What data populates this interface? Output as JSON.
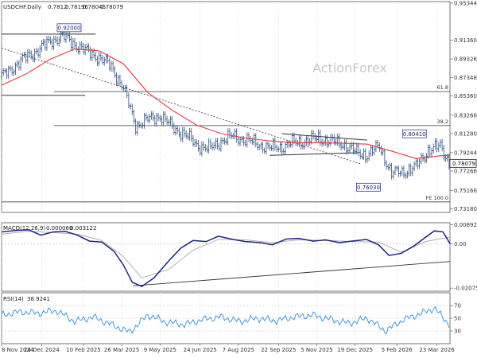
{
  "colors": {
    "bar": "#2f4f7f",
    "sma": "#e8383c",
    "trendline": "#333333",
    "fib_line": "#2a3a4a",
    "macd": "#1a237e",
    "macd_signal": "#b0b0b0",
    "rsi": "#2f8fd8",
    "grid": "#bbbbbb",
    "axis": "#555555",
    "watermark": "#c8c8c8"
  },
  "chart_data": [
    {
      "type": "line",
      "panel": "price",
      "title": "USDCHF.Daily  0.78120 0.78196 0.78046 0.78079",
      "symbol_label": "USDCHF.Daily",
      "ohlc": {
        "open": 0.7812,
        "high": 0.78196,
        "low": 0.78046,
        "close": 0.78079
      },
      "watermark": "ActionForex",
      "x_tick_labels": [
        "8 Nov 2024",
        "24 Dec 2024",
        "10 Feb 2025",
        "26 Mar 2025",
        "9 May 2025",
        "24 Jun 2025",
        "7 Aug 2025",
        "22 Sep 2025",
        "5 Nov 2025",
        "19 Dec 2025",
        "5 Feb 2026",
        "23 Mar 2026"
      ],
      "x_range": [
        "2024-11-08",
        "2026-04-07"
      ],
      "y_ticks": [
        0.9534,
        0.9136,
        0.8932,
        0.8734,
        0.8536,
        0.8326,
        0.8128,
        0.7924,
        0.7726,
        0.7516,
        0.7318
      ],
      "y_tick_labels": [
        "0.95344",
        "0.91360",
        "0.89326",
        "0.87348",
        "0.85360",
        "0.83266",
        "0.81280",
        "0.79244",
        "0.77266",
        "0.75166",
        "0.73180"
      ],
      "ylim": [
        0.728,
        0.955
      ],
      "current_price_label": "0.78079",
      "annotations": [
        {
          "label": "0.92000",
          "date": "2025-01-10",
          "value": 0.92
        },
        {
          "label": "0.80410",
          "date": "2026-03-09",
          "value": 0.8041
        },
        {
          "label": "0.76030",
          "date": "2026-01-28",
          "value": 0.7603
        }
      ],
      "levels": [
        {
          "label": "61.8",
          "value": 0.8581
        },
        {
          "label": "38.2",
          "value": 0.8215
        },
        {
          "label": "FE 100.0",
          "value": 0.7393
        }
      ],
      "series": [
        {
          "key": "close",
          "x": [
            "2024-11-08",
            "2024-11-22",
            "2024-12-06",
            "2024-12-20",
            "2025-01-03",
            "2025-01-17",
            "2025-01-31",
            "2025-02-14",
            "2025-02-28",
            "2025-03-14",
            "2025-03-28",
            "2025-04-11",
            "2025-04-25",
            "2025-05-09",
            "2025-05-23",
            "2025-06-06",
            "2025-06-20",
            "2025-07-04",
            "2025-07-18",
            "2025-08-01",
            "2025-08-15",
            "2025-08-29",
            "2025-09-12",
            "2025-09-26",
            "2025-10-10",
            "2025-10-24",
            "2025-11-07",
            "2025-11-21",
            "2025-12-05",
            "2025-12-19",
            "2026-01-02",
            "2026-01-16",
            "2026-01-30",
            "2026-02-13",
            "2026-02-27",
            "2026-03-13",
            "2026-03-27",
            "2026-04-07"
          ],
          "values": [
            0.874,
            0.885,
            0.895,
            0.903,
            0.912,
            0.918,
            0.909,
            0.901,
            0.895,
            0.885,
            0.862,
            0.822,
            0.828,
            0.832,
            0.82,
            0.812,
            0.801,
            0.796,
            0.805,
            0.81,
            0.806,
            0.802,
            0.797,
            0.799,
            0.803,
            0.805,
            0.808,
            0.804,
            0.802,
            0.793,
            0.79,
            0.799,
            0.77,
            0.772,
            0.777,
            0.795,
            0.799,
            0.7808
          ]
        },
        {
          "key": "sma",
          "x": [
            "2024-11-08",
            "2024-12-06",
            "2025-01-03",
            "2025-01-31",
            "2025-02-28",
            "2025-03-28",
            "2025-04-25",
            "2025-05-23",
            "2025-06-20",
            "2025-07-18",
            "2025-08-15",
            "2025-09-12",
            "2025-10-10",
            "2025-11-07",
            "2025-12-05",
            "2026-01-02",
            "2026-01-30",
            "2026-02-27",
            "2026-03-27",
            "2026-04-07"
          ],
          "values": [
            0.865,
            0.877,
            0.893,
            0.904,
            0.902,
            0.888,
            0.857,
            0.838,
            0.822,
            0.813,
            0.808,
            0.805,
            0.803,
            0.803,
            0.8025,
            0.8015,
            0.794,
            0.786,
            0.789,
            0.7895
          ]
        }
      ],
      "trendlines": [
        {
          "name": "channel",
          "from": [
            "2024-11-08",
            0.905
          ],
          "to": [
            "2025-12-26",
            0.78
          ]
        },
        {
          "name": "top",
          "from": [
            "2024-11-08",
            0.92
          ],
          "to": [
            "2025-02-24",
            0.92
          ]
        },
        {
          "name": "mid",
          "from": [
            "2024-11-08",
            0.854
          ],
          "to": [
            "2025-02-12",
            0.854
          ]
        },
        {
          "name": "tri-upper",
          "from": [
            "2025-09-26",
            0.8128
          ],
          "to": [
            "2026-01-02",
            0.8058
          ]
        },
        {
          "name": "tri-lower",
          "from": [
            "2025-09-12",
            0.7895
          ],
          "to": [
            "2025-12-23",
            0.7922
          ]
        }
      ]
    },
    {
      "type": "line",
      "panel": "macd",
      "title": "MACD(12,26,9) 0.000060 0.003122",
      "indicator_label": "MACD(12,26,9)",
      "readout": [
        "0.000060",
        "0.003122"
      ],
      "y_ticks": [
        0.008923,
        0,
        -0.020759
      ],
      "y_tick_labels": [
        "0.008923",
        "0.00",
        "-0.020759"
      ],
      "ylim": [
        -0.0222,
        0.0098
      ],
      "series": [
        {
          "key": "macd",
          "x": [
            "2024-11-08",
            "2024-11-25",
            "2024-12-09",
            "2024-12-23",
            "2025-01-06",
            "2025-01-20",
            "2025-02-03",
            "2025-02-17",
            "2025-03-03",
            "2025-03-17",
            "2025-03-28",
            "2025-04-07",
            "2025-04-18",
            "2025-05-02",
            "2025-05-19",
            "2025-06-02",
            "2025-06-16",
            "2025-07-01",
            "2025-07-15",
            "2025-08-01",
            "2025-08-15",
            "2025-09-01",
            "2025-09-15",
            "2025-10-01",
            "2025-10-15",
            "2025-11-01",
            "2025-11-15",
            "2025-12-01",
            "2025-12-15",
            "2026-01-01",
            "2026-01-15",
            "2026-01-27",
            "2026-02-10",
            "2026-02-24",
            "2026-03-10",
            "2026-03-20",
            "2026-03-30",
            "2026-04-07"
          ],
          "values": [
            0.0055,
            0.0062,
            0.0065,
            0.004,
            0.0055,
            0.0058,
            0.004,
            0.0012,
            0.0008,
            -0.0035,
            -0.01,
            -0.018,
            -0.02,
            -0.016,
            -0.008,
            -0.002,
            0.0015,
            0.001,
            0.0035,
            0.002,
            0.001,
            0.0005,
            -0.0005,
            0.0022,
            0.0025,
            0.0012,
            0.0018,
            0.0005,
            0.0012,
            0.002,
            -0.0005,
            -0.0055,
            -0.0045,
            -0.0012,
            0.003,
            0.006,
            0.0055,
            6e-05
          ]
        },
        {
          "key": "signal",
          "x": [
            "2024-11-08",
            "2024-12-09",
            "2025-01-06",
            "2025-02-03",
            "2025-03-03",
            "2025-03-28",
            "2025-04-18",
            "2025-05-19",
            "2025-06-16",
            "2025-07-15",
            "2025-08-15",
            "2025-09-15",
            "2025-10-15",
            "2025-11-15",
            "2025-12-15",
            "2026-01-15",
            "2026-02-10",
            "2026-03-10",
            "2026-04-07"
          ],
          "values": [
            0.0045,
            0.0058,
            0.0052,
            0.0045,
            0.0015,
            -0.006,
            -0.016,
            -0.012,
            -0.003,
            0.002,
            0.0018,
            0.0005,
            0.0018,
            0.0015,
            0.001,
            0.0008,
            -0.004,
            0.001,
            0.003122
          ]
        }
      ],
      "trendlines": [
        {
          "name": "macd-support",
          "from": [
            "2025-04-08",
            -0.0197
          ],
          "to": [
            "2026-04-07",
            -0.0083
          ]
        }
      ]
    },
    {
      "type": "line",
      "panel": "rsi",
      "title": "RSI(14) 38.9241",
      "indicator_label": "RSI(14)",
      "readout": "38.9241",
      "y_ticks": [
        70,
        50,
        30
      ],
      "y_tick_labels": [
        "70",
        "50",
        "30"
      ],
      "ylim": [
        10,
        90
      ],
      "series": [
        {
          "key": "rsi",
          "x": [
            "2024-11-08",
            "2024-11-29",
            "2024-12-20",
            "2025-01-10",
            "2025-01-31",
            "2025-02-21",
            "2025-03-14",
            "2025-04-04",
            "2025-04-25",
            "2025-05-16",
            "2025-06-06",
            "2025-06-27",
            "2025-07-18",
            "2025-08-08",
            "2025-08-29",
            "2025-09-19",
            "2025-10-10",
            "2025-10-31",
            "2025-11-21",
            "2025-12-12",
            "2026-01-02",
            "2026-01-23",
            "2026-02-13",
            "2026-03-06",
            "2026-03-20",
            "2026-04-07"
          ],
          "values": [
            55,
            60,
            58,
            62,
            45,
            52,
            40,
            28,
            55,
            44,
            40,
            48,
            52,
            45,
            50,
            46,
            52,
            55,
            48,
            42,
            50,
            30,
            48,
            58,
            66,
            38.9241
          ]
        }
      ]
    }
  ]
}
